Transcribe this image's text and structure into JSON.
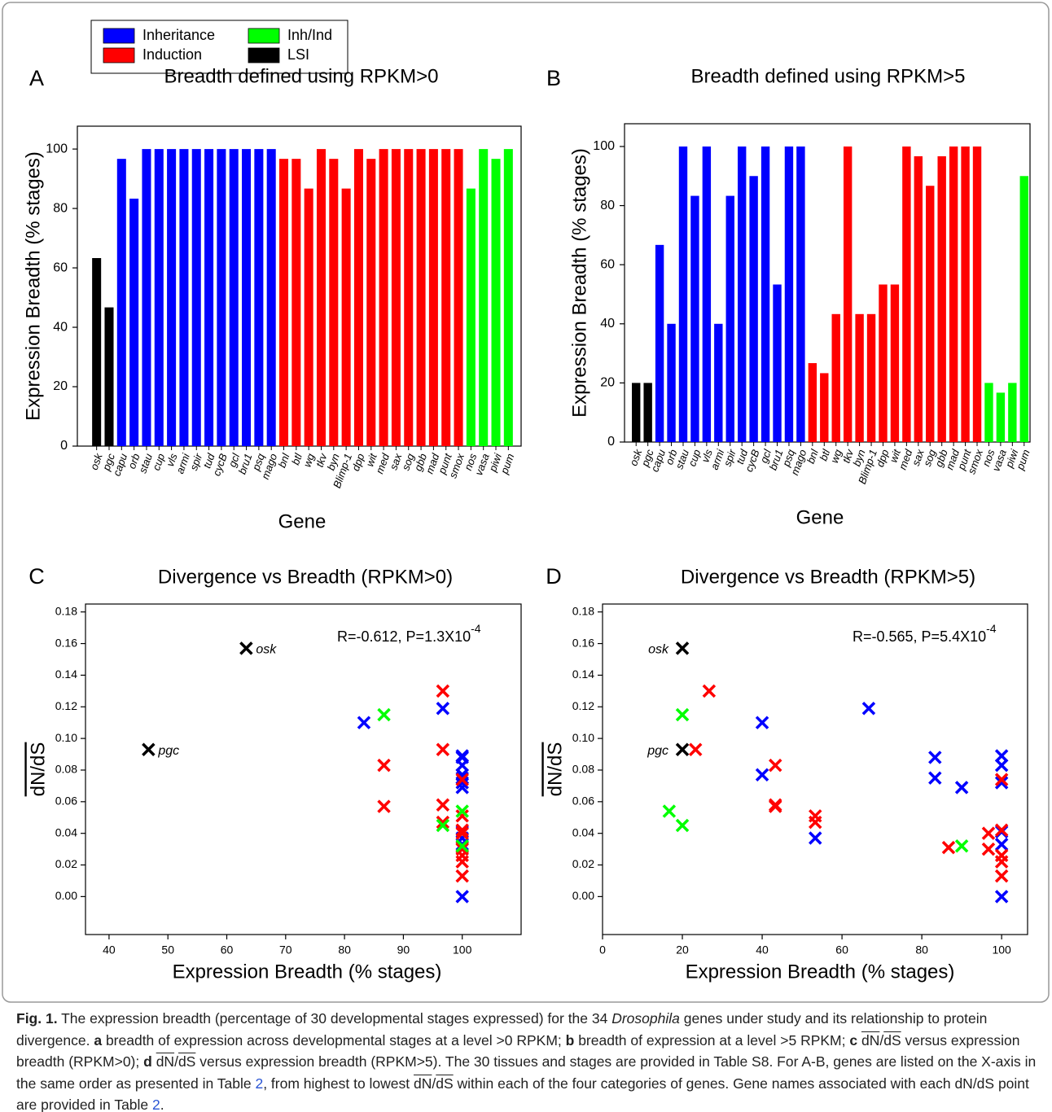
{
  "legend": [
    {
      "name": "Inheritance",
      "color": "#0000ff"
    },
    {
      "name": "Induction",
      "color": "#ff0000"
    },
    {
      "name": "Inh/Ind",
      "color": "#00ff00"
    },
    {
      "name": "LSI",
      "color": "#000000"
    }
  ],
  "chart_data": [
    {
      "type": "bar",
      "panel": "A",
      "title": "Breadth defined using RPKM>0",
      "xlabel": "Gene",
      "ylabel": "Expression Breadth (% stages)",
      "categories": [
        "osk",
        "pgc",
        "capu",
        "orb",
        "stau",
        "cup",
        "vls",
        "armi",
        "spir",
        "tud",
        "cycB",
        "gcl",
        "bru1",
        "psq",
        "mago",
        "bnl",
        "btl",
        "wg",
        "tkv",
        "byn",
        "Blimp-1",
        "dpp",
        "wit",
        "med",
        "sax",
        "sog",
        "gbb",
        "mad",
        "punt",
        "smox",
        "nos",
        "vasa",
        "piwi",
        "pum"
      ],
      "values": [
        63.3,
        46.7,
        96.7,
        83.3,
        100,
        100,
        100,
        100,
        100,
        100,
        100,
        100,
        100,
        100,
        100,
        96.7,
        96.7,
        86.7,
        100,
        96.7,
        86.7,
        100,
        96.7,
        100,
        100,
        100,
        100,
        100,
        100,
        100,
        86.7,
        100,
        96.7,
        100
      ],
      "colors": [
        "#000000",
        "#000000",
        "#0000ff",
        "#0000ff",
        "#0000ff",
        "#0000ff",
        "#0000ff",
        "#0000ff",
        "#0000ff",
        "#0000ff",
        "#0000ff",
        "#0000ff",
        "#0000ff",
        "#0000ff",
        "#0000ff",
        "#ff0000",
        "#ff0000",
        "#ff0000",
        "#ff0000",
        "#ff0000",
        "#ff0000",
        "#ff0000",
        "#ff0000",
        "#ff0000",
        "#ff0000",
        "#ff0000",
        "#ff0000",
        "#ff0000",
        "#ff0000",
        "#ff0000",
        "#00ff00",
        "#00ff00",
        "#00ff00",
        "#00ff00"
      ],
      "ylim": [
        0,
        107.7
      ],
      "yticks": [
        0,
        20,
        40,
        60,
        80,
        100
      ]
    },
    {
      "type": "bar",
      "panel": "B",
      "title": "Breadth defined using RPKM>5",
      "xlabel": "Gene",
      "ylabel": "Expression Breadth (% stages)",
      "categories": [
        "osk",
        "pgc",
        "capu",
        "orb",
        "stau",
        "cup",
        "vls",
        "armi",
        "spir",
        "tud",
        "cycB",
        "gcl",
        "bru1",
        "psq",
        "mago",
        "bnl",
        "btl",
        "wg",
        "tkv",
        "byn",
        "Blimp-1",
        "dpp",
        "wit",
        "med",
        "sax",
        "sog",
        "gbb",
        "mad",
        "punt",
        "smox",
        "nos",
        "vasa",
        "piwi",
        "pum"
      ],
      "values": [
        20,
        20,
        66.7,
        40,
        100,
        83.3,
        100,
        40,
        83.3,
        100,
        90,
        100,
        53.3,
        100,
        100,
        26.7,
        23.3,
        43.3,
        100,
        43.3,
        43.3,
        53.3,
        53.3,
        100,
        96.7,
        86.7,
        96.7,
        100,
        100,
        100,
        20,
        16.7,
        20,
        90
      ],
      "colors": [
        "#000000",
        "#000000",
        "#0000ff",
        "#0000ff",
        "#0000ff",
        "#0000ff",
        "#0000ff",
        "#0000ff",
        "#0000ff",
        "#0000ff",
        "#0000ff",
        "#0000ff",
        "#0000ff",
        "#0000ff",
        "#0000ff",
        "#ff0000",
        "#ff0000",
        "#ff0000",
        "#ff0000",
        "#ff0000",
        "#ff0000",
        "#ff0000",
        "#ff0000",
        "#ff0000",
        "#ff0000",
        "#ff0000",
        "#ff0000",
        "#ff0000",
        "#ff0000",
        "#ff0000",
        "#00ff00",
        "#00ff00",
        "#00ff00",
        "#00ff00"
      ],
      "ylim": [
        0,
        107.7
      ],
      "yticks": [
        0,
        20,
        40,
        60,
        80,
        100
      ]
    },
    {
      "type": "scatter",
      "panel": "C",
      "title": "Divergence vs Breadth (RPKM>0)",
      "annotation": {
        "text": "R=-0.612, P=1.3X10",
        "superscript": "-4"
      },
      "xlabel": "Expression Breadth (% stages)",
      "ylabel": "dN/dS",
      "xlim": [
        36,
        110
      ],
      "xticks": [
        40,
        50,
        60,
        70,
        80,
        90,
        100
      ],
      "ylim": [
        -0.024,
        0.185
      ],
      "yticks": [
        {
          "value": 0,
          "label": "0.00"
        },
        {
          "value": 0.02,
          "label": "0.02"
        },
        {
          "value": 0.04,
          "label": "0.04"
        },
        {
          "value": 0.06,
          "label": "0.06"
        },
        {
          "value": 0.08,
          "label": "0.08"
        },
        {
          "value": 0.1,
          "label": "0.10"
        },
        {
          "value": 0.12,
          "label": "0.12"
        },
        {
          "value": 0.14,
          "label": "0.14"
        },
        {
          "value": 0.16,
          "label": "0.16"
        },
        {
          "value": 0.18,
          "label": "0.18"
        }
      ],
      "series": [
        {
          "color": "#0000ff",
          "x": [
            96.7,
            83.3,
            100,
            100,
            100,
            100,
            100,
            100,
            100,
            100,
            100,
            100,
            100
          ],
          "y": [
            0.119,
            0.11,
            0.089,
            0.088,
            0.083,
            0.077,
            0.075,
            0.072,
            0.069,
            0.041,
            0.037,
            0.033,
            0.0
          ]
        },
        {
          "color": "#ff0000",
          "x": [
            96.7,
            96.7,
            86.7,
            100,
            96.7,
            86.7,
            100,
            96.7,
            100,
            100,
            100,
            100,
            100,
            100,
            100
          ],
          "y": [
            0.13,
            0.093,
            0.083,
            0.074,
            0.058,
            0.057,
            0.051,
            0.047,
            0.042,
            0.04,
            0.031,
            0.03,
            0.026,
            0.022,
            0.013
          ]
        },
        {
          "color": "#00ff00",
          "x": [
            86.7,
            100,
            96.7,
            100
          ],
          "y": [
            0.115,
            0.054,
            0.045,
            0.032
          ]
        },
        {
          "color": "#000000",
          "x": [
            63.3,
            46.7
          ],
          "y": [
            0.157,
            0.093
          ],
          "point_labels": [
            "osk",
            "pgc"
          ]
        }
      ]
    },
    {
      "type": "scatter",
      "panel": "D",
      "title": "Divergence vs Breadth (RPKM>5)",
      "annotation": {
        "text": "R=-0.565, P=5.4X10",
        "superscript": "-4"
      },
      "xlabel": "Expression Breadth (% stages)",
      "ylabel": "dN/dS",
      "xlim": [
        0,
        106.5
      ],
      "xticks": [
        0,
        20,
        40,
        60,
        80,
        100
      ],
      "ylim": [
        -0.024,
        0.185
      ],
      "yticks": [
        {
          "value": 0,
          "label": "0.00"
        },
        {
          "value": 0.02,
          "label": "0.02"
        },
        {
          "value": 0.04,
          "label": "0.04"
        },
        {
          "value": 0.06,
          "label": "0.06"
        },
        {
          "value": 0.08,
          "label": "0.08"
        },
        {
          "value": 0.1,
          "label": "0.10"
        },
        {
          "value": 0.12,
          "label": "0.12"
        },
        {
          "value": 0.14,
          "label": "0.14"
        },
        {
          "value": 0.16,
          "label": "0.16"
        },
        {
          "value": 0.18,
          "label": "0.18"
        }
      ],
      "series": [
        {
          "color": "#0000ff",
          "x": [
            66.7,
            40,
            100,
            83.3,
            100,
            40,
            83.3,
            100,
            90,
            100,
            53.3,
            100,
            100
          ],
          "y": [
            0.119,
            0.11,
            0.089,
            0.088,
            0.083,
            0.077,
            0.075,
            0.072,
            0.069,
            0.041,
            0.037,
            0.033,
            0.0
          ]
        },
        {
          "color": "#ff0000",
          "x": [
            26.7,
            23.3,
            43.3,
            100,
            43.3,
            43.3,
            53.3,
            53.3,
            100,
            96.7,
            86.7,
            96.7,
            100,
            100,
            100
          ],
          "y": [
            0.13,
            0.093,
            0.083,
            0.074,
            0.058,
            0.057,
            0.051,
            0.047,
            0.042,
            0.04,
            0.031,
            0.03,
            0.026,
            0.022,
            0.013
          ]
        },
        {
          "color": "#00ff00",
          "x": [
            20,
            16.7,
            20,
            90
          ],
          "y": [
            0.115,
            0.054,
            0.045,
            0.032
          ]
        },
        {
          "color": "#000000",
          "x": [
            20,
            20
          ],
          "y": [
            0.157,
            0.093
          ],
          "point_labels": [
            "osk",
            "pgc"
          ]
        }
      ]
    }
  ],
  "caption": {
    "parts": [
      {
        "text": "Fig. 1.",
        "style": "b"
      },
      {
        "text": " The expression breadth (percentage of 30 developmental stages expressed) for the 34 "
      },
      {
        "text": "Drosophila",
        "style": "i"
      },
      {
        "text": " genes under study and its relationship to protein divergence. "
      },
      {
        "text": "a",
        "style": "b"
      },
      {
        "text": " breadth of expression across developmental stages at a level >0 RPKM; "
      },
      {
        "text": "b",
        "style": "b"
      },
      {
        "text": " breadth of expression at a level >5 RPKM; "
      },
      {
        "text": "c",
        "style": "b"
      },
      {
        "text": " "
      },
      {
        "text": "dN",
        "style": "o"
      },
      {
        "text": "/"
      },
      {
        "text": "dS",
        "style": "o"
      },
      {
        "text": " versus expression breadth (RPKM>0); "
      },
      {
        "text": "d",
        "style": "b"
      },
      {
        "text": " "
      },
      {
        "text": "dN",
        "style": "o"
      },
      {
        "text": "/"
      },
      {
        "text": "dS",
        "style": "o"
      },
      {
        "text": " versus expression breadth (RPKM>5). The 30 tissues and stages are provided in Table S8. For A-B, genes are listed on the X-axis in the same order as presented in Table "
      },
      {
        "text": "2",
        "style": "link"
      },
      {
        "text": ", from highest to lowest "
      },
      {
        "text": "dN",
        "style": "o"
      },
      {
        "text": "/"
      },
      {
        "text": "dS",
        "style": "o"
      },
      {
        "text": " within each of the four categories of genes. Gene names associated with each dN/dS point are provided in Table "
      },
      {
        "text": "2",
        "style": "link"
      },
      {
        "text": "."
      }
    ]
  }
}
